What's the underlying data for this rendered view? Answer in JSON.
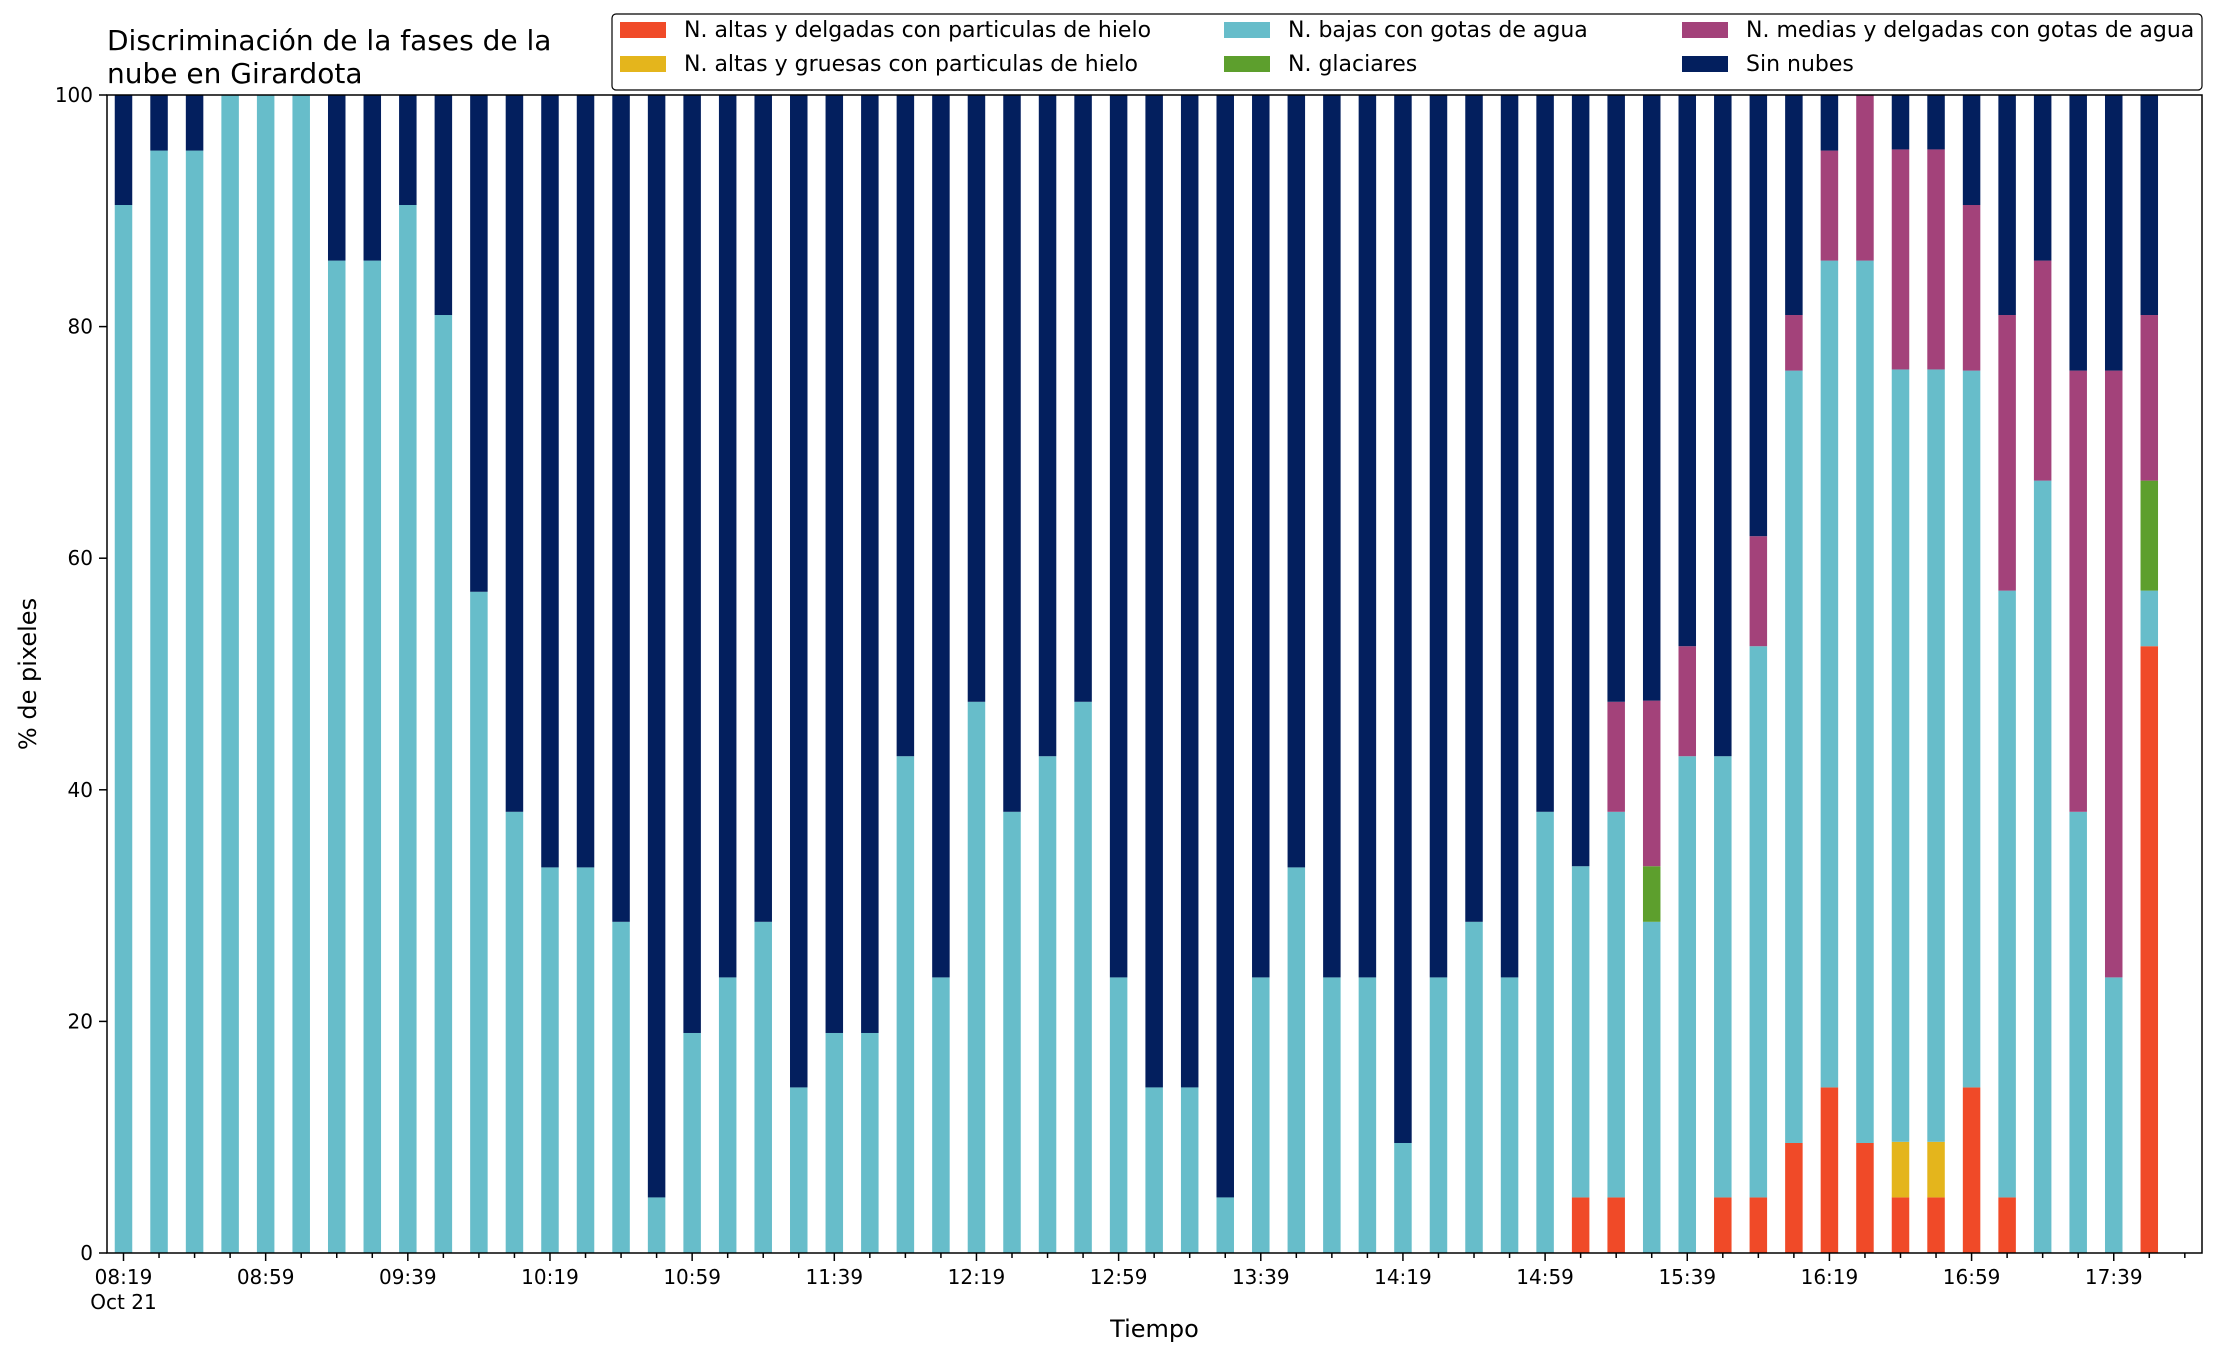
{
  "chart_data": {
    "type": "bar",
    "stacked": true,
    "title": "Discriminación de la fases de la\nnube en Girardota",
    "xlabel": "Tiempo",
    "ylabel": "% de pixeles",
    "ylim": [
      0,
      100
    ],
    "yticks": [
      0,
      20,
      40,
      60,
      80,
      100
    ],
    "grid": false,
    "legend_position": "top-right",
    "x_tick_labels": [
      "08:19",
      "08:59",
      "09:39",
      "10:19",
      "10:59",
      "11:39",
      "12:19",
      "12:59",
      "13:39",
      "14:19",
      "14:59",
      "15:39",
      "16:19",
      "16:59",
      "17:39"
    ],
    "x_tick_sublabel": "Oct 21",
    "x_tick_every": 4,
    "x_minor_every": 1,
    "categories": [
      "08:19",
      "08:29",
      "08:39",
      "08:49",
      "08:59",
      "09:09",
      "09:19",
      "09:29",
      "09:39",
      "09:49",
      "09:59",
      "10:09",
      "10:19",
      "10:29",
      "10:39",
      "10:49",
      "10:59",
      "11:09",
      "11:19",
      "11:29",
      "11:39",
      "11:49",
      "11:59",
      "12:09",
      "12:19",
      "12:29",
      "12:39",
      "12:49",
      "12:59",
      "13:09",
      "13:19",
      "13:29",
      "13:39",
      "13:49",
      "13:59",
      "14:09",
      "14:19",
      "14:29",
      "14:39",
      "14:49",
      "14:59",
      "15:09",
      "15:19",
      "15:29",
      "15:39",
      "15:49",
      "15:59",
      "16:09",
      "16:19",
      "16:29",
      "16:39",
      "16:49",
      "16:59",
      "17:09",
      "17:19",
      "17:29",
      "17:39",
      "17:49"
    ],
    "series": [
      {
        "name": "N. altas y delgadas con particulas de hielo",
        "color": "#f04a28",
        "values": [
          0,
          0,
          0,
          0,
          0,
          0,
          0,
          0,
          0,
          0,
          0,
          0,
          0,
          0,
          0,
          0,
          0,
          0,
          0,
          0,
          0,
          0,
          0,
          0,
          0,
          0,
          0,
          0,
          0,
          0,
          0,
          0,
          0,
          0,
          0,
          0,
          0,
          0,
          0,
          0,
          0,
          4.8,
          4.8,
          0,
          0,
          4.8,
          4.8,
          9.5,
          14.3,
          9.5,
          4.8,
          4.8,
          14.3,
          4.8,
          0,
          0,
          0,
          52.4
        ]
      },
      {
        "name": "N. altas y gruesas con particulas de hielo",
        "color": "#e4b51c",
        "values": [
          0,
          0,
          0,
          0,
          0,
          0,
          0,
          0,
          0,
          0,
          0,
          0,
          0,
          0,
          0,
          0,
          0,
          0,
          0,
          0,
          0,
          0,
          0,
          0,
          0,
          0,
          0,
          0,
          0,
          0,
          0,
          0,
          0,
          0,
          0,
          0,
          0,
          0,
          0,
          0,
          0,
          0,
          0,
          0,
          0,
          0,
          0,
          0,
          0,
          0,
          4.8,
          4.8,
          0,
          0,
          0,
          0,
          0,
          0
        ]
      },
      {
        "name": "N. bajas con gotas de agua",
        "color": "#67bdca",
        "values": [
          90.5,
          95.2,
          95.2,
          100,
          100,
          100,
          85.7,
          85.7,
          90.5,
          81,
          57.1,
          38.1,
          33.3,
          33.3,
          28.6,
          4.8,
          19,
          23.8,
          28.6,
          14.3,
          19,
          19,
          42.9,
          23.8,
          47.6,
          38.1,
          42.9,
          47.6,
          23.8,
          14.3,
          14.3,
          4.8,
          23.8,
          33.3,
          23.8,
          23.8,
          9.5,
          23.8,
          28.6,
          23.8,
          38.1,
          28.6,
          33.3,
          28.6,
          42.9,
          38.1,
          47.6,
          66.7,
          71.4,
          76.2,
          66.7,
          66.7,
          61.9,
          52.4,
          66.7,
          38.1,
          23.8,
          4.8
        ]
      },
      {
        "name": "N. glaciares",
        "color": "#5d9f2d",
        "values": [
          0,
          0,
          0,
          0,
          0,
          0,
          0,
          0,
          0,
          0,
          0,
          0,
          0,
          0,
          0,
          0,
          0,
          0,
          0,
          0,
          0,
          0,
          0,
          0,
          0,
          0,
          0,
          0,
          0,
          0,
          0,
          0,
          0,
          0,
          0,
          0,
          0,
          0,
          0,
          0,
          0,
          0,
          0,
          4.8,
          0,
          0,
          0,
          0,
          0,
          0,
          0,
          0,
          0,
          0,
          0,
          0,
          0,
          9.5
        ]
      },
      {
        "name": "N. medias y delgadas con gotas de agua",
        "color": "#a3427a",
        "values": [
          0,
          0,
          0,
          0,
          0,
          0,
          0,
          0,
          0,
          0,
          0,
          0,
          0,
          0,
          0,
          0,
          0,
          0,
          0,
          0,
          0,
          0,
          0,
          0,
          0,
          0,
          0,
          0,
          0,
          0,
          0,
          0,
          0,
          0,
          0,
          0,
          0,
          0,
          0,
          0,
          0,
          0,
          9.5,
          14.3,
          9.5,
          0,
          9.5,
          4.8,
          9.5,
          14.3,
          19,
          19,
          14.3,
          23.8,
          19,
          38.1,
          52.4,
          14.3
        ]
      },
      {
        "name": "Sin nubes",
        "color": "#031f5e",
        "values": [
          9.5,
          4.8,
          4.8,
          0,
          0,
          0,
          14.3,
          14.3,
          9.5,
          19,
          42.9,
          61.9,
          66.7,
          66.7,
          71.4,
          95.2,
          81,
          76.2,
          71.4,
          85.7,
          81,
          81,
          57.1,
          76.2,
          52.4,
          61.9,
          57.1,
          52.4,
          76.2,
          85.7,
          85.7,
          95.2,
          76.2,
          66.7,
          76.2,
          76.2,
          90.5,
          76.2,
          71.4,
          76.2,
          61.9,
          66.7,
          52.4,
          52.4,
          47.6,
          57.1,
          38.1,
          19,
          4.8,
          0,
          4.8,
          4.8,
          9.5,
          19,
          14.3,
          23.8,
          23.8,
          19
        ]
      }
    ]
  }
}
